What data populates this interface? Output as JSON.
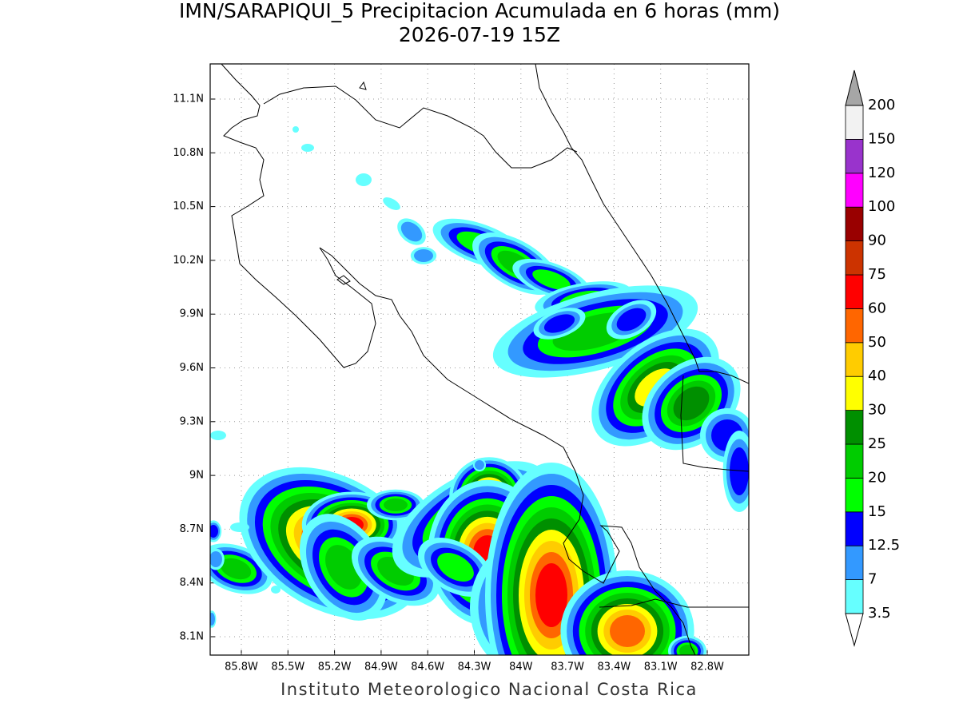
{
  "title": "IMN/SARAPIQUI_5 Precipitacion Acumulada en 6 horas (mm)",
  "subtitle": "2026-07-19 15Z",
  "map": {
    "lat_ticks": [
      "11.1N",
      "10.8N",
      "10.5N",
      "10.2N",
      "9.9N",
      "9.6N",
      "9.3N",
      "9N",
      "8.7N",
      "8.4N",
      "8.1N"
    ],
    "lon_ticks": [
      "85.8W",
      "85.5W",
      "85.2W",
      "84.9W",
      "84.6W",
      "84.3W",
      "84W",
      "83.7W",
      "83.4W",
      "83.1W",
      "82.8W"
    ],
    "grid": true
  },
  "colorbar": {
    "labels": [
      "3.5",
      "7",
      "12.5",
      "15",
      "20",
      "25",
      "30",
      "40",
      "50",
      "60",
      "75",
      "90",
      "100",
      "120",
      "150",
      "200"
    ],
    "colors": [
      "#66ffff",
      "#3399ff",
      "#0000ff",
      "#00ff00",
      "#00cc00",
      "#008f00",
      "#ffff00",
      "#ffcc00",
      "#ff6600",
      "#ff0000",
      "#cc3300",
      "#990000",
      "#ff00ff",
      "#9933cc",
      "#f2f2f2"
    ],
    "over_color": "#a6a6a6",
    "under_color": "#ffffff"
  },
  "footer": "Instituto Meteorologico Nacional Costa Rica"
}
